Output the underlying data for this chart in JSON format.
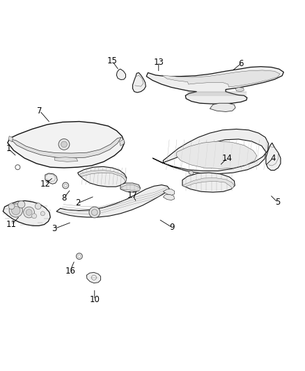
{
  "background_color": "#ffffff",
  "label_fontsize": 8.5,
  "label_color": "#000000",
  "line_color": "#000000",
  "line_width": 0.6,
  "leaders": {
    "1": {
      "part": [
        0.055,
        0.595
      ],
      "label": [
        0.028,
        0.62
      ]
    },
    "2": {
      "part": [
        0.31,
        0.465
      ],
      "label": [
        0.255,
        0.442
      ]
    },
    "3": {
      "part": [
        0.235,
        0.38
      ],
      "label": [
        0.178,
        0.358
      ]
    },
    "4": {
      "part": [
        0.87,
        0.565
      ],
      "label": [
        0.895,
        0.59
      ]
    },
    "5": {
      "part": [
        0.885,
        0.47
      ],
      "label": [
        0.91,
        0.445
      ]
    },
    "6": {
      "part": [
        0.76,
        0.875
      ],
      "label": [
        0.79,
        0.9
      ]
    },
    "7": {
      "part": [
        0.165,
        0.705
      ],
      "label": [
        0.13,
        0.745
      ]
    },
    "8": {
      "part": [
        0.232,
        0.488
      ],
      "label": [
        0.21,
        0.46
      ]
    },
    "9": {
      "part": [
        0.52,
        0.39
      ],
      "label": [
        0.565,
        0.362
      ]
    },
    "10": {
      "part": [
        0.31,
        0.162
      ],
      "label": [
        0.31,
        0.125
      ]
    },
    "11": {
      "part": [
        0.065,
        0.4
      ],
      "label": [
        0.038,
        0.372
      ]
    },
    "12": {
      "part": [
        0.175,
        0.527
      ],
      "label": [
        0.148,
        0.505
      ]
    },
    "13": {
      "part": [
        0.52,
        0.87
      ],
      "label": [
        0.52,
        0.905
      ]
    },
    "14": {
      "part": [
        0.72,
        0.565
      ],
      "label": [
        0.745,
        0.59
      ]
    },
    "15": {
      "part": [
        0.39,
        0.878
      ],
      "label": [
        0.368,
        0.908
      ]
    },
    "16": {
      "part": [
        0.245,
        0.255
      ],
      "label": [
        0.23,
        0.22
      ]
    },
    "17": {
      "part": [
        0.448,
        0.445
      ],
      "label": [
        0.435,
        0.468
      ]
    }
  }
}
